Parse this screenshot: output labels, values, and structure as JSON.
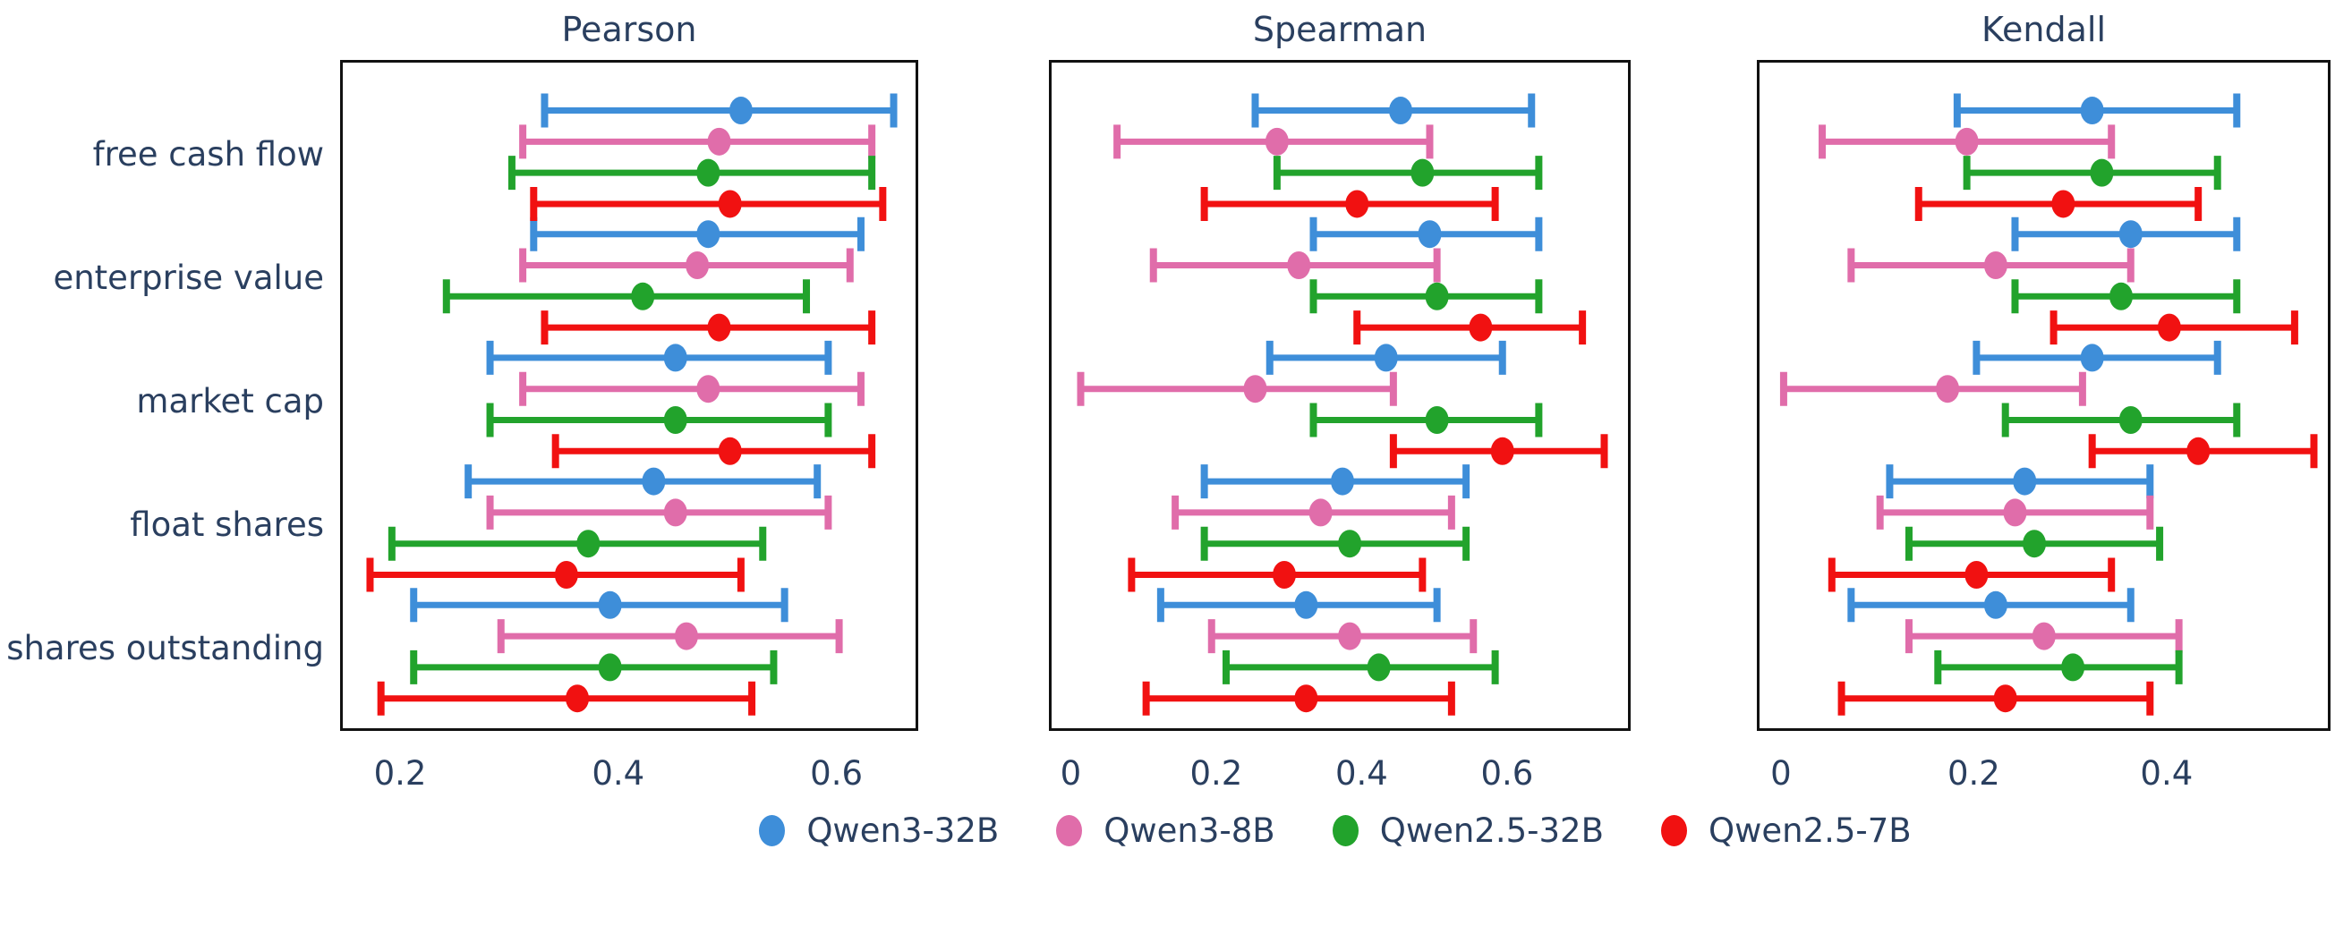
{
  "figure": {
    "background": "#ffffff",
    "text_color": "#2a3f5f",
    "border_color": "#111111"
  },
  "legend": {
    "position": "bottom-center",
    "items": [
      {
        "label": "Qwen3-32B",
        "color": "#3e8ed9",
        "marker": "circle-icon"
      },
      {
        "label": "Qwen3-8B",
        "color": "#e06daa",
        "marker": "circle-icon"
      },
      {
        "label": "Qwen2.5-32B",
        "color": "#22a32c",
        "marker": "circle-icon"
      },
      {
        "label": "Qwen2.5-7B",
        "color": "#f11111",
        "marker": "circle-icon"
      }
    ]
  },
  "chart_data": {
    "type": "scatter",
    "subtype": "horizontal-dot-plot-with-error-bars",
    "grid": false,
    "categories": [
      "free cash flow",
      "enterprise value",
      "market cap",
      "float shares",
      "shares outstanding"
    ],
    "series_names": [
      "Qwen3-32B",
      "Qwen3-8B",
      "Qwen2.5-32B",
      "Qwen2.5-7B"
    ],
    "value_format": "[low, center, high] of horizontal error bar",
    "panels": [
      {
        "title": "Pearson",
        "xlim": [
          0.145,
          0.675
        ],
        "xticks": [
          {
            "value": 0.2,
            "label": "0.2"
          },
          {
            "value": 0.4,
            "label": "0.4"
          },
          {
            "value": 0.6,
            "label": "0.6"
          }
        ],
        "series": [
          {
            "name": "Qwen3-32B",
            "color": "#3e8ed9",
            "points": [
              {
                "low": 0.33,
                "mid": 0.51,
                "high": 0.65
              },
              {
                "low": 0.32,
                "mid": 0.48,
                "high": 0.62
              },
              {
                "low": 0.28,
                "mid": 0.45,
                "high": 0.59
              },
              {
                "low": 0.26,
                "mid": 0.43,
                "high": 0.58
              },
              {
                "low": 0.21,
                "mid": 0.39,
                "high": 0.55
              }
            ]
          },
          {
            "name": "Qwen3-8B",
            "color": "#e06daa",
            "points": [
              {
                "low": 0.31,
                "mid": 0.49,
                "high": 0.63
              },
              {
                "low": 0.31,
                "mid": 0.47,
                "high": 0.61
              },
              {
                "low": 0.31,
                "mid": 0.48,
                "high": 0.62
              },
              {
                "low": 0.28,
                "mid": 0.45,
                "high": 0.59
              },
              {
                "low": 0.29,
                "mid": 0.46,
                "high": 0.6
              }
            ]
          },
          {
            "name": "Qwen2.5-32B",
            "color": "#22a32c",
            "points": [
              {
                "low": 0.3,
                "mid": 0.48,
                "high": 0.63
              },
              {
                "low": 0.24,
                "mid": 0.42,
                "high": 0.57
              },
              {
                "low": 0.28,
                "mid": 0.45,
                "high": 0.59
              },
              {
                "low": 0.19,
                "mid": 0.37,
                "high": 0.53
              },
              {
                "low": 0.21,
                "mid": 0.39,
                "high": 0.54
              }
            ]
          },
          {
            "name": "Qwen2.5-7B",
            "color": "#f11111",
            "points": [
              {
                "low": 0.32,
                "mid": 0.5,
                "high": 0.64
              },
              {
                "low": 0.33,
                "mid": 0.49,
                "high": 0.63
              },
              {
                "low": 0.34,
                "mid": 0.5,
                "high": 0.63
              },
              {
                "low": 0.17,
                "mid": 0.35,
                "high": 0.51
              },
              {
                "low": 0.18,
                "mid": 0.36,
                "high": 0.52
              }
            ]
          }
        ]
      },
      {
        "title": "Spearman",
        "xlim": [
          -0.03,
          0.77
        ],
        "xticks": [
          {
            "value": 0.0,
            "label": "0"
          },
          {
            "value": 0.2,
            "label": "0.2"
          },
          {
            "value": 0.4,
            "label": "0.4"
          },
          {
            "value": 0.6,
            "label": "0.6"
          }
        ],
        "series": [
          {
            "name": "Qwen3-32B",
            "color": "#3e8ed9",
            "points": [
              {
                "low": 0.25,
                "mid": 0.45,
                "high": 0.63
              },
              {
                "low": 0.33,
                "mid": 0.49,
                "high": 0.64
              },
              {
                "low": 0.27,
                "mid": 0.43,
                "high": 0.59
              },
              {
                "low": 0.18,
                "mid": 0.37,
                "high": 0.54
              },
              {
                "low": 0.12,
                "mid": 0.32,
                "high": 0.5
              }
            ]
          },
          {
            "name": "Qwen3-8B",
            "color": "#e06daa",
            "points": [
              {
                "low": 0.06,
                "mid": 0.28,
                "high": 0.49
              },
              {
                "low": 0.11,
                "mid": 0.31,
                "high": 0.5
              },
              {
                "low": 0.01,
                "mid": 0.25,
                "high": 0.44
              },
              {
                "low": 0.14,
                "mid": 0.34,
                "high": 0.52
              },
              {
                "low": 0.19,
                "mid": 0.38,
                "high": 0.55
              }
            ]
          },
          {
            "name": "Qwen2.5-32B",
            "color": "#22a32c",
            "points": [
              {
                "low": 0.28,
                "mid": 0.48,
                "high": 0.64
              },
              {
                "low": 0.33,
                "mid": 0.5,
                "high": 0.64
              },
              {
                "low": 0.33,
                "mid": 0.5,
                "high": 0.64
              },
              {
                "low": 0.18,
                "mid": 0.38,
                "high": 0.54
              },
              {
                "low": 0.21,
                "mid": 0.42,
                "high": 0.58
              }
            ]
          },
          {
            "name": "Qwen2.5-7B",
            "color": "#f11111",
            "points": [
              {
                "low": 0.18,
                "mid": 0.39,
                "high": 0.58
              },
              {
                "low": 0.39,
                "mid": 0.56,
                "high": 0.7
              },
              {
                "low": 0.44,
                "mid": 0.59,
                "high": 0.73
              },
              {
                "low": 0.08,
                "mid": 0.29,
                "high": 0.48
              },
              {
                "low": 0.1,
                "mid": 0.32,
                "high": 0.52
              }
            ]
          }
        ]
      },
      {
        "title": "Kendall",
        "xlim": [
          -0.025,
          0.57
        ],
        "xticks": [
          {
            "value": 0.0,
            "label": "0"
          },
          {
            "value": 0.2,
            "label": "0.2"
          },
          {
            "value": 0.4,
            "label": "0.4"
          }
        ],
        "series": [
          {
            "name": "Qwen3-32B",
            "color": "#3e8ed9",
            "points": [
              {
                "low": 0.18,
                "mid": 0.32,
                "high": 0.47
              },
              {
                "low": 0.24,
                "mid": 0.36,
                "high": 0.47
              },
              {
                "low": 0.2,
                "mid": 0.32,
                "high": 0.45
              },
              {
                "low": 0.11,
                "mid": 0.25,
                "high": 0.38
              },
              {
                "low": 0.07,
                "mid": 0.22,
                "high": 0.36
              }
            ]
          },
          {
            "name": "Qwen3-8B",
            "color": "#e06daa",
            "points": [
              {
                "low": 0.04,
                "mid": 0.19,
                "high": 0.34
              },
              {
                "low": 0.07,
                "mid": 0.22,
                "high": 0.36
              },
              {
                "low": 0.0,
                "mid": 0.17,
                "high": 0.31
              },
              {
                "low": 0.1,
                "mid": 0.24,
                "high": 0.38
              },
              {
                "low": 0.13,
                "mid": 0.27,
                "high": 0.41
              }
            ]
          },
          {
            "name": "Qwen2.5-32B",
            "color": "#22a32c",
            "points": [
              {
                "low": 0.19,
                "mid": 0.33,
                "high": 0.45
              },
              {
                "low": 0.24,
                "mid": 0.35,
                "high": 0.47
              },
              {
                "low": 0.23,
                "mid": 0.36,
                "high": 0.47
              },
              {
                "low": 0.13,
                "mid": 0.26,
                "high": 0.39
              },
              {
                "low": 0.16,
                "mid": 0.3,
                "high": 0.41
              }
            ]
          },
          {
            "name": "Qwen2.5-7B",
            "color": "#f11111",
            "points": [
              {
                "low": 0.14,
                "mid": 0.29,
                "high": 0.43
              },
              {
                "low": 0.28,
                "mid": 0.4,
                "high": 0.53
              },
              {
                "low": 0.32,
                "mid": 0.43,
                "high": 0.55
              },
              {
                "low": 0.05,
                "mid": 0.2,
                "high": 0.34
              },
              {
                "low": 0.06,
                "mid": 0.23,
                "high": 0.38
              }
            ]
          }
        ]
      }
    ]
  }
}
